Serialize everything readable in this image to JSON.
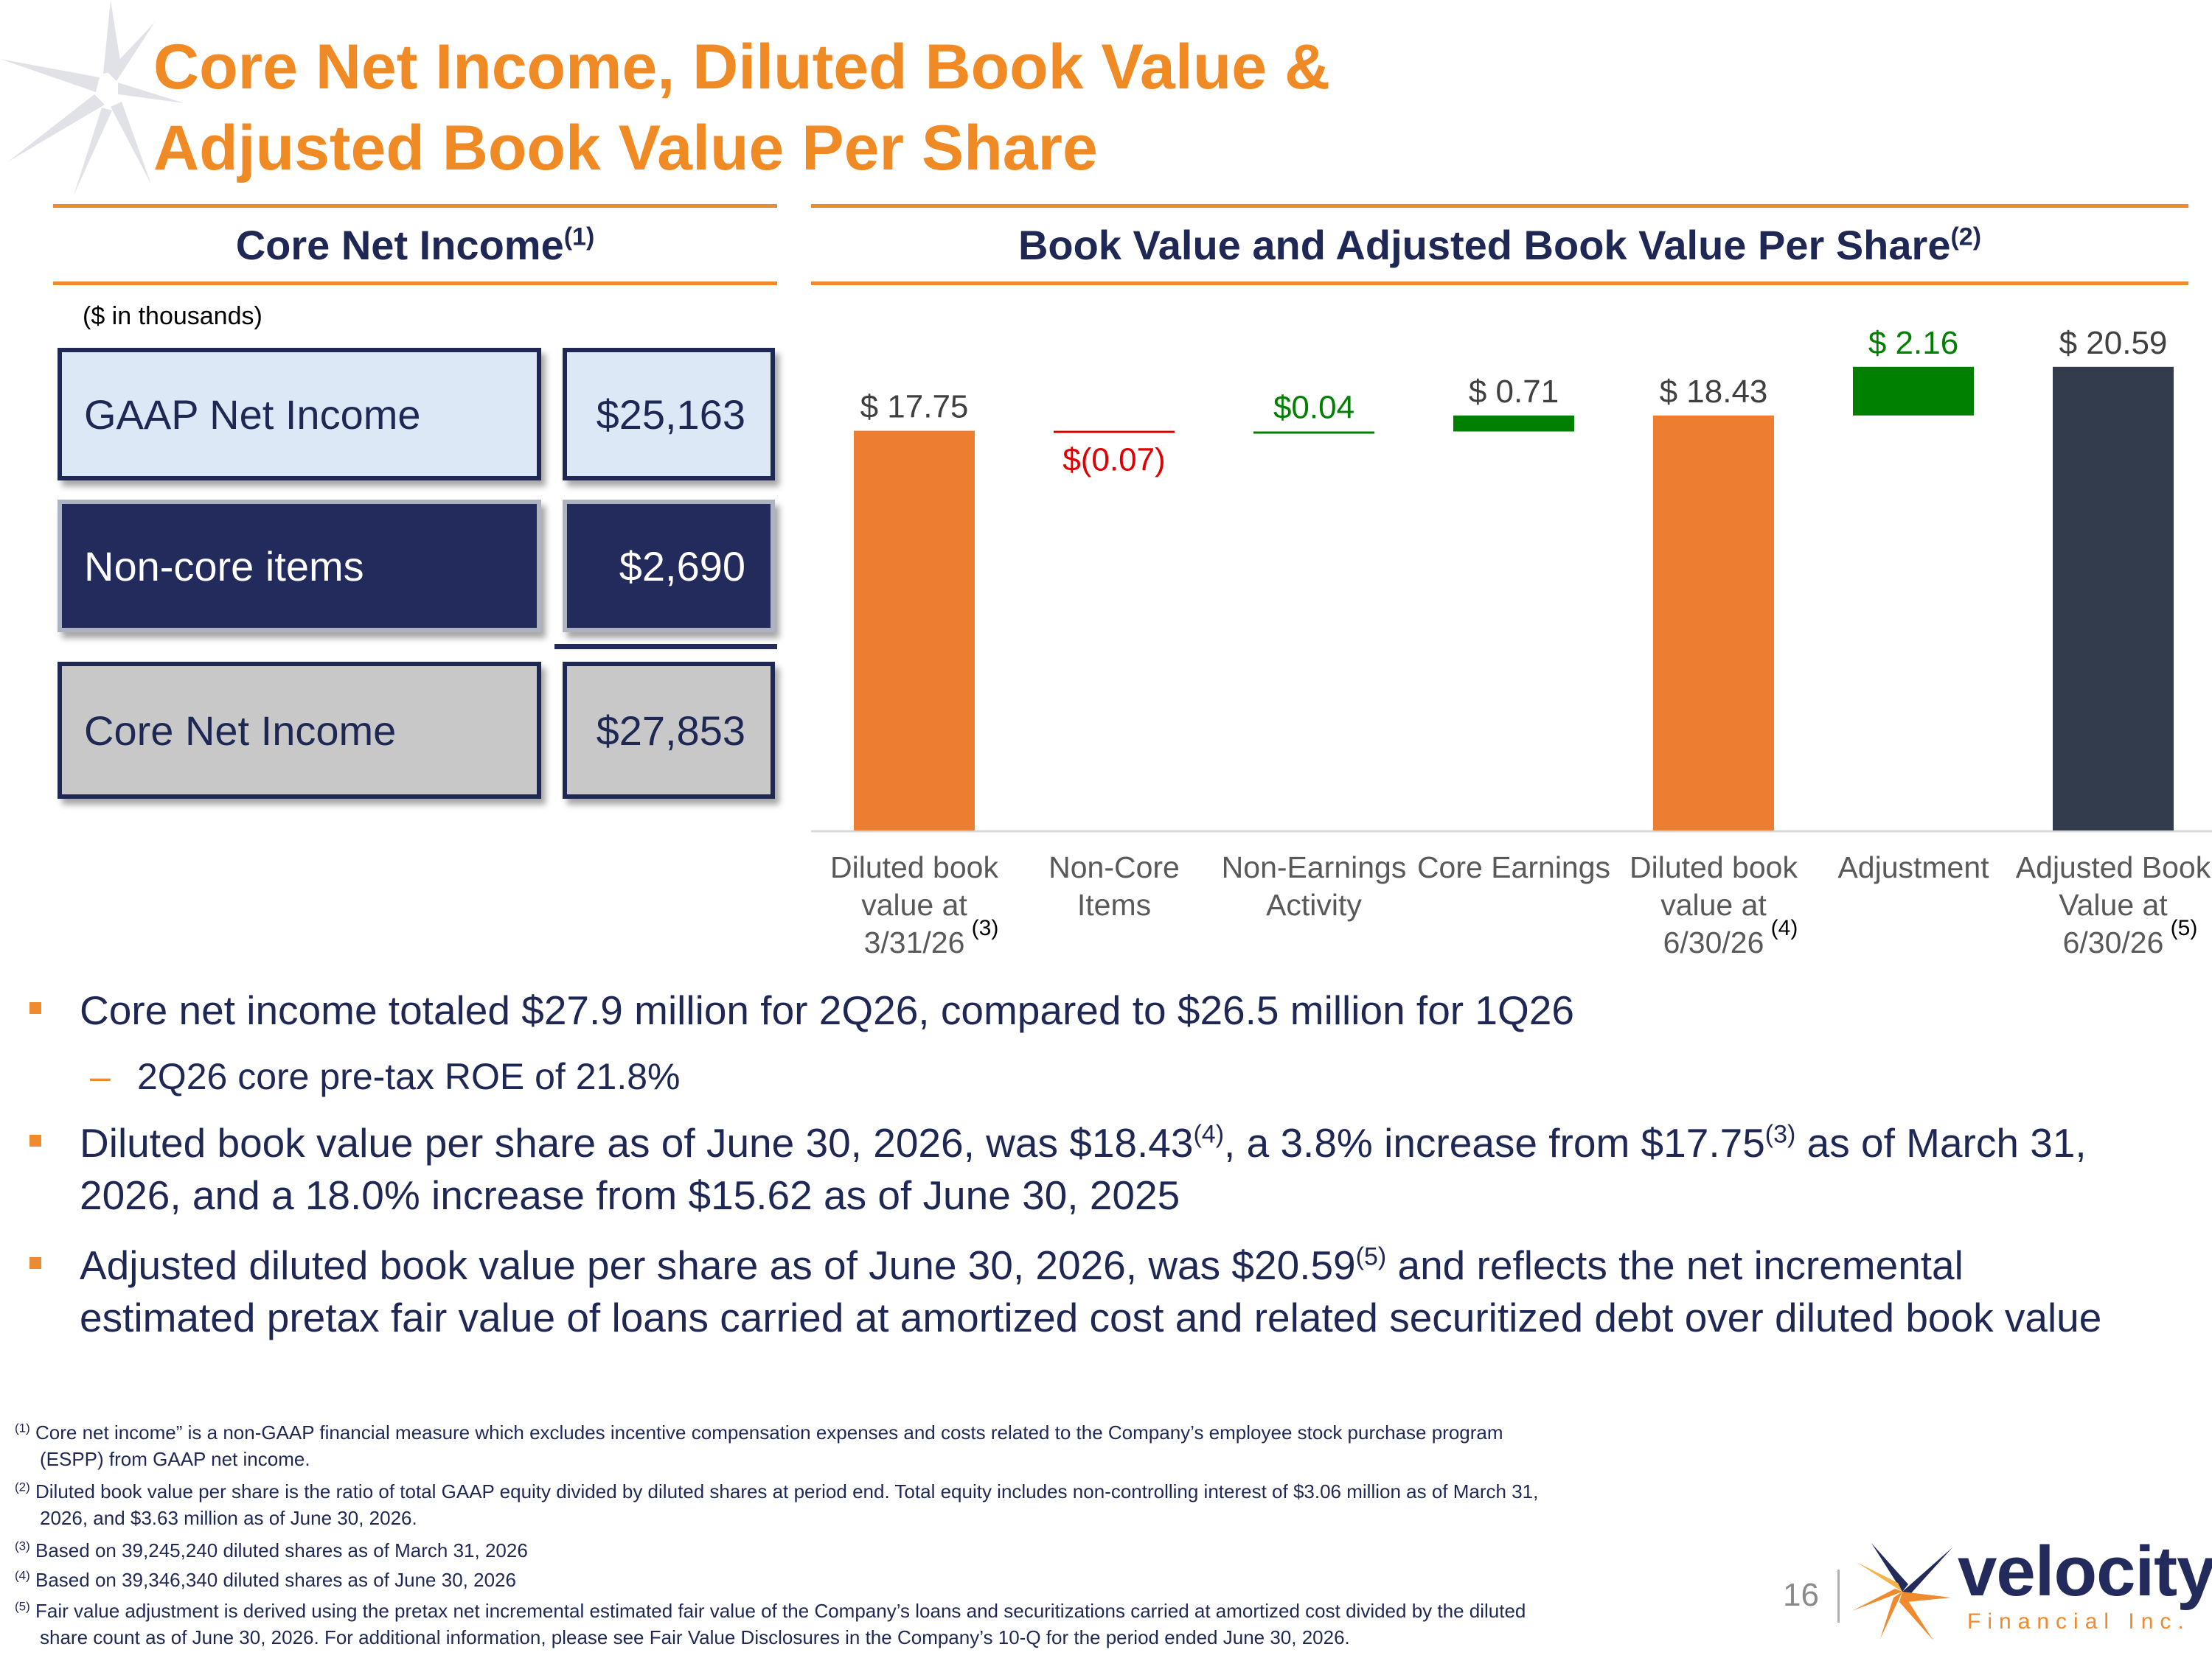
{
  "title": {
    "line1": "Core Net Income, Diluted Book Value &",
    "line2": "Adjusted Book Value Per Share"
  },
  "core_net_income": {
    "heading": "Core Net Income",
    "heading_sup": "(1)",
    "units_note": "($ in thousands)",
    "rows": [
      {
        "label": "GAAP Net Income",
        "value": "$25,163"
      },
      {
        "label": "Non-core items",
        "value": "$2,690"
      },
      {
        "label": "Core Net Income",
        "value": "$27,853"
      }
    ]
  },
  "book_value": {
    "heading": "Book Value and Adjusted Book Value Per Share",
    "heading_sup": "(2)"
  },
  "chart_data": {
    "type": "bar",
    "subtype": "waterfall",
    "categories": [
      [
        "Diluted book",
        "value at",
        "3/31/26"
      ],
      [
        "Non-Core",
        "Items"
      ],
      [
        "Non-Earnings",
        "Activity"
      ],
      [
        "Core Earnings"
      ],
      [
        "Diluted book",
        "value at",
        "6/30/26"
      ],
      [
        "Adjustment"
      ],
      [
        "Adjusted Book",
        "Value at",
        "6/30/26"
      ]
    ],
    "category_notes": [
      "(3)",
      "",
      "",
      "",
      "(4)",
      "",
      "(5)"
    ],
    "bars": [
      {
        "kind": "total",
        "start": 0,
        "end": 17.75,
        "value": 17.75,
        "label": "$ 17.75",
        "color": "#ed7d31",
        "label_color": "#404040"
      },
      {
        "kind": "delta",
        "start": 17.75,
        "end": 17.68,
        "value": -0.07,
        "label": "$(0.07)",
        "color": "#e00000",
        "label_color": "#e00000"
      },
      {
        "kind": "delta",
        "start": 17.68,
        "end": 17.72,
        "value": 0.04,
        "label": "$0.04",
        "color": "#008000",
        "label_color": "#008000"
      },
      {
        "kind": "delta",
        "start": 17.72,
        "end": 18.43,
        "value": 0.71,
        "label": "$ 0.71",
        "color": "#008000",
        "label_color": "#404040"
      },
      {
        "kind": "total",
        "start": 0,
        "end": 18.43,
        "value": 18.43,
        "label": "$ 18.43",
        "color": "#ed7d31",
        "label_color": "#404040"
      },
      {
        "kind": "delta",
        "start": 18.43,
        "end": 20.59,
        "value": 2.16,
        "label": "$ 2.16",
        "color": "#008000",
        "label_color": "#008000"
      },
      {
        "kind": "total",
        "start": 0,
        "end": 20.59,
        "value": 20.59,
        "label": "$ 20.59",
        "color": "#333c4d",
        "label_color": "#404040"
      }
    ],
    "ylim": [
      0,
      21.5
    ],
    "grid": false,
    "legend": "none"
  },
  "bullets": [
    {
      "parts": [
        {
          "t": "Core net income totaled $27.9 million for 2Q26, compared to $26.5 million for 1Q26"
        }
      ]
    },
    {
      "parts": [
        {
          "t": "Diluted book value per share as of June 30, 2026, was $18.43"
        },
        {
          "sup": "(4)"
        },
        {
          "t": ", a 3.8% increase from $17.75"
        },
        {
          "sup": "(3)"
        },
        {
          "t": " as of March 31, 2026, and a 18.0% increase from $15.62 as of June 30, 2025"
        }
      ]
    },
    {
      "parts": [
        {
          "t": "Adjusted diluted book value per share as of June 30, 2026, was $20.59"
        },
        {
          "sup": "(5)"
        },
        {
          "t": " and reflects the net incremental estimated pretax fair value of loans carried at amortized cost and related securitized debt over diluted book value"
        }
      ]
    }
  ],
  "sub_bullet": "2Q26 core pre-tax ROE of 21.8%",
  "footnotes": [
    {
      "mark": "(1)",
      "line1": " Core net income” is a non-GAAP financial measure which excludes incentive compensation expenses and costs related to the Company’s employee stock purchase program",
      "line2": "(ESPP) from GAAP net income."
    },
    {
      "mark": "(2)",
      "line1": " Diluted book value per share is the ratio of total GAAP equity divided by diluted shares at period end. Total equity includes non-controlling interest of $3.06 million as of March 31,",
      "line2": "2026, and $3.63 million as of June 30, 2026."
    },
    {
      "mark": "(3)",
      "line1": " Based on 39,245,240 diluted shares as of March 31, 2026",
      "line2": ""
    },
    {
      "mark": "(4)",
      "line1": " Based on 39,346,340 diluted shares as of June 30, 2026",
      "line2": ""
    },
    {
      "mark": "(5)",
      "line1": " Fair value adjustment is derived using the pretax net incremental estimated fair value of the Company’s loans and securitizations carried at amortized cost divided by the diluted",
      "line2": "share count as of June 30, 2026. For additional information, please see Fair Value Disclosures in the Company’s 10-Q for the period ended June 30, 2026."
    }
  ],
  "page_number": "16",
  "logo": {
    "word": "velocity",
    "sub": "Financial Inc."
  },
  "colors": {
    "accent": "#ef8a2e",
    "navy": "#1f2855",
    "increase": "#008000",
    "decrease": "#e00000"
  }
}
